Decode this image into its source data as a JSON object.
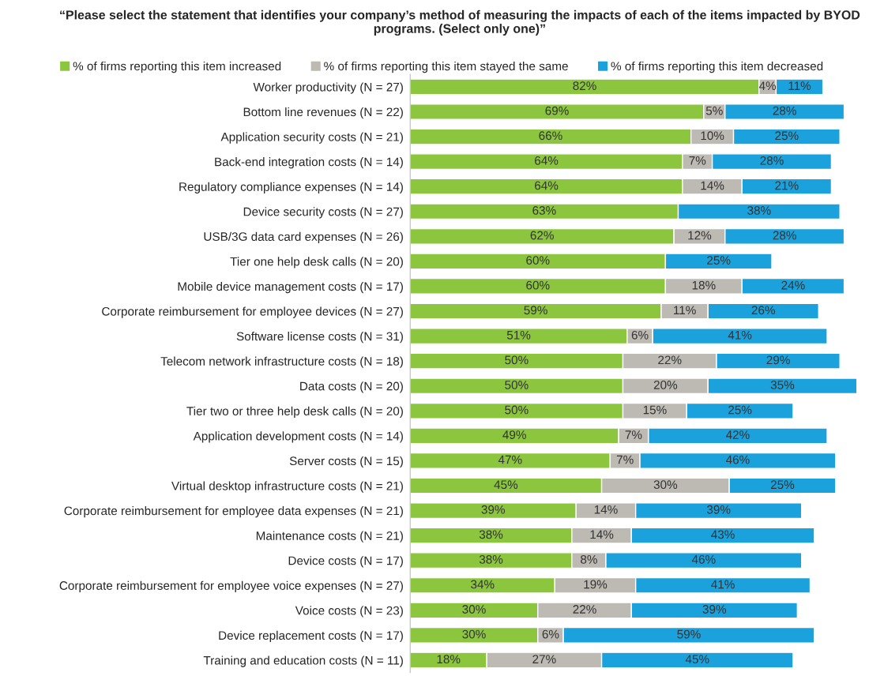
{
  "chart_data": {
    "type": "bar",
    "orientation": "horizontal",
    "stacked": true,
    "title": "“Please select the statement that identifies your company’s method of measuring the impacts of each of the items impacted by BYOD programs. (Select only one)”",
    "categories": [
      "Worker productivity (N = 27)",
      "Bottom line revenues (N = 22)",
      "Application security costs (N = 21)",
      "Back-end integration costs (N = 14)",
      "Regulatory compliance expenses (N = 14)",
      "Device security costs (N = 27)",
      "USB/3G data card expenses (N = 26)",
      "Tier one help desk calls (N = 20)",
      "Mobile device management costs (N = 17)",
      "Corporate reimbursement for employee devices (N = 27)",
      "Software license costs (N = 31)",
      "Telecom network infrastructure costs (N = 18)",
      "Data costs (N = 20)",
      "Tier two or three help desk calls (N = 20)",
      "Application development costs (N = 14)",
      "Server costs (N = 15)",
      "Virtual desktop infrastructure costs (N = 21)",
      "Corporate reimbursement for employee data expenses (N = 21)",
      "Maintenance costs (N = 21)",
      "Device costs (N = 17)",
      "Corporate reimbursement for employee voice expenses (N = 27)",
      "Voice costs (N = 23)",
      "Device replacement costs (N = 17)",
      "Training and education costs (N = 11)"
    ],
    "series": [
      {
        "name": "% of firms reporting this item increased",
        "color": "#8cc63f",
        "values": [
          82,
          69,
          66,
          64,
          64,
          63,
          62,
          60,
          60,
          59,
          51,
          50,
          50,
          50,
          49,
          47,
          45,
          39,
          38,
          38,
          34,
          30,
          30,
          18
        ],
        "value_labels": [
          "82%",
          "69%",
          "66%",
          "64%",
          "64%",
          "63%",
          "62%",
          "60%",
          "60%",
          "59%",
          "51%",
          "50%",
          "50%",
          "50%",
          "49%",
          "47%",
          "45%",
          "39%",
          "38%",
          "38%",
          "34%",
          "30%",
          "30%",
          "18%"
        ]
      },
      {
        "name": "% of firms reporting this item stayed the same",
        "color": "#bdbab3",
        "values": [
          4,
          5,
          10,
          7,
          14,
          null,
          12,
          null,
          18,
          11,
          6,
          22,
          20,
          15,
          7,
          7,
          30,
          14,
          14,
          8,
          19,
          22,
          6,
          27
        ],
        "value_labels": [
          "4%",
          "5%",
          "10%",
          "7%",
          "14%",
          null,
          "12%",
          null,
          "18%",
          "11%",
          "6%",
          "22%",
          "20%",
          "15%",
          "7%",
          "7%",
          "30%",
          "14%",
          "14%",
          "8%",
          "19%",
          "22%",
          "6%",
          "27%"
        ]
      },
      {
        "name": "% of firms reporting this item decreased",
        "color": "#1ba1db",
        "values": [
          11,
          28,
          25,
          28,
          21,
          38,
          28,
          25,
          24,
          26,
          41,
          29,
          35,
          25,
          42,
          46,
          25,
          39,
          43,
          46,
          41,
          39,
          59,
          45
        ],
        "value_labels": [
          "11%",
          "28%",
          "25%",
          "28%",
          "21%",
          "38%",
          "28%",
          "25%",
          "24%",
          "26%",
          "41%",
          "29%",
          "35%",
          "25%",
          "42%",
          "46%",
          "25%",
          "39%",
          "43%",
          "46%",
          "41%",
          "39%",
          "59%",
          "45%"
        ]
      }
    ],
    "legend": "top",
    "grid": false
  }
}
